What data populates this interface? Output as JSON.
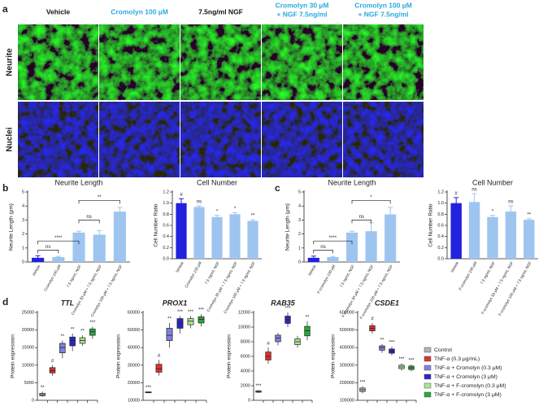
{
  "panel_labels": [
    "a",
    "b",
    "c",
    "d"
  ],
  "panel_a": {
    "columns": [
      {
        "lines": [
          "Vehicle"
        ],
        "color": "#111111"
      },
      {
        "lines": [
          "Cromolyn 100 µM"
        ],
        "color": "#29a9e0"
      },
      {
        "lines": [
          "7.5ng/ml NGF"
        ],
        "color": "#111111"
      },
      {
        "lines": [
          "Cromolyn 30 µM",
          "+ NGF 7.5ng/ml"
        ],
        "color": "#29a9e0"
      },
      {
        "lines": [
          "Cromolyn 100 µM",
          "+ NGF 7.5ng/ml"
        ],
        "color": "#29a9e0"
      }
    ],
    "rows": [
      "Neurite",
      "Nuclei"
    ]
  },
  "legend": [
    {
      "name": "Control",
      "color": "#b3b3b3"
    },
    {
      "name": "TNF-α (0.3 μg/mL)",
      "color": "#e0302a"
    },
    {
      "name": "TNF-α + Cromolyn (0.3 μM)",
      "color": "#8080e0"
    },
    {
      "name": "TNF-α + Cromolyn (3 μM)",
      "color": "#2828c0"
    },
    {
      "name": "TNF-α + F-cromolyn (0.3 μM)",
      "color": "#a8e890"
    },
    {
      "name": "TNF-α + F-cromolyn (3 μM)",
      "color": "#2aa83a"
    }
  ],
  "chart_data": [
    {
      "type": "bar",
      "title": "Neurite Length",
      "ylabel": "Neurite Length (μm)",
      "categories": [
        "Vehicle",
        "Cromolyn 100 μM",
        "7.5 ng/mL NGF",
        "Cromolyn 30 μM + 7.5 ng/mL NGF",
        "Cromolyn 100 μM + 7.5 ng/mL NGF"
      ],
      "values": [
        0.3,
        0.35,
        2.1,
        1.95,
        3.6
      ],
      "errors": [
        0.15,
        0.05,
        0.1,
        0.3,
        0.3
      ],
      "colors": [
        "#2222dd",
        "#9ec5f0",
        "#9ec5f0",
        "#9ec5f0",
        "#9ec5f0"
      ],
      "brackets": [
        "ns",
        "****",
        "ns",
        "**"
      ],
      "ylim": [
        0,
        5
      ],
      "yticks": [
        0,
        1,
        2,
        3,
        4,
        5
      ]
    },
    {
      "type": "bar",
      "title": "Cell Number",
      "ylabel": "Cell Number Ratio",
      "categories": [
        "Vehicle",
        "Cromolyn 100 μM",
        "7.5 ng/mL NGF",
        "Cromolyn 30 μM + 7.5 ng/mL NGF",
        "Cromolyn 100 μM + 7.5 ng/mL NGF"
      ],
      "values": [
        1.0,
        0.93,
        0.75,
        0.8,
        0.68
      ],
      "errors": [
        0.08,
        0.02,
        0.03,
        0.03,
        0.02
      ],
      "colors": [
        "#2222dd",
        "#9ec5f0",
        "#9ec5f0",
        "#9ec5f0",
        "#9ec5f0"
      ],
      "significance": [
        "#",
        "ns",
        "*",
        "*",
        "**"
      ],
      "ylim": [
        0,
        1.2
      ],
      "yticks": [
        {
          "value": 0,
          "label": "0.0"
        },
        {
          "value": 0.2,
          "label": "0.2"
        },
        {
          "value": 0.4,
          "label": "0.4"
        },
        {
          "value": 0.6,
          "label": "0.6"
        },
        {
          "value": 0.8,
          "label": "0.8"
        },
        {
          "value": 1,
          "label": "1.0"
        },
        {
          "value": 1.2,
          "label": "1.2"
        }
      ]
    },
    {
      "type": "bar",
      "title": "Neurite Length",
      "ylabel": "Neurite Length (μm)",
      "categories": [
        "Vehicle",
        "F-cromolyn 100 μM",
        "7.5 ng/mL NGF",
        "F-cromolyn 30 μM + 7.5 ng/mL NGF",
        "F-cromolyn 100 μM + 7.5 ng/mL NGF"
      ],
      "values": [
        0.3,
        0.35,
        2.1,
        2.2,
        3.4
      ],
      "errors": [
        0.12,
        0.05,
        0.1,
        0.6,
        0.5
      ],
      "colors": [
        "#2222dd",
        "#9ec5f0",
        "#9ec5f0",
        "#9ec5f0",
        "#9ec5f0"
      ],
      "brackets": [
        "ns",
        "****",
        "ns",
        "*"
      ],
      "ylim": [
        0,
        5
      ],
      "yticks": [
        0,
        1,
        2,
        3,
        4,
        5
      ]
    },
    {
      "type": "bar",
      "title": "Cell Number",
      "ylabel": "Cell Number Ratio",
      "categories": [
        "Vehicle",
        "F-cromolyn 100 μM",
        "7.5 ng/mL NGF",
        "F-cromolyn 30 μM + 7.5 ng/mL NGF",
        "F-cromolyn 100 μM + 7.5 ng/mL NGF"
      ],
      "values": [
        1.0,
        1.02,
        0.75,
        0.85,
        0.7
      ],
      "errors": [
        0.1,
        0.15,
        0.03,
        0.1,
        0.02
      ],
      "colors": [
        "#2222dd",
        "#9ec5f0",
        "#9ec5f0",
        "#9ec5f0",
        "#9ec5f0"
      ],
      "significance": [
        "#",
        "ns",
        "*",
        "ns",
        "**"
      ],
      "ylim": [
        0,
        1.2
      ],
      "yticks": [
        {
          "value": 0,
          "label": "0.0"
        },
        {
          "value": 0.2,
          "label": "0.2"
        },
        {
          "value": 0.4,
          "label": "0.4"
        },
        {
          "value": 0.6,
          "label": "0.6"
        },
        {
          "value": 0.8,
          "label": "0.8"
        },
        {
          "value": 1,
          "label": "1.0"
        },
        {
          "value": 1.2,
          "label": "1.2"
        }
      ]
    },
    {
      "type": "box",
      "title": "TTL",
      "ylabel": "Protein expression",
      "values": [
        [
          1000,
          1300,
          1600,
          2000,
          2500
        ],
        [
          7000,
          7800,
          8500,
          9300,
          10000
        ],
        [
          12000,
          13500,
          15000,
          16200,
          17000
        ],
        [
          14000,
          15500,
          17000,
          18000,
          19000
        ],
        [
          15500,
          16200,
          17000,
          17800,
          18500
        ],
        [
          17500,
          18500,
          19500,
          20300,
          21000
        ]
      ],
      "significance": [
        "**",
        "#",
        "**",
        "**",
        "**",
        "***"
      ],
      "ylim": [
        0,
        25000
      ],
      "yticks": [
        0,
        5000,
        10000,
        15000,
        20000,
        25000
      ]
    },
    {
      "type": "box",
      "title": "PROX1",
      "ylabel": "Protein expression",
      "values": [
        [
          14000,
          14300,
          14500,
          14800,
          15000
        ],
        [
          24000,
          26000,
          28000,
          30500,
          33000
        ],
        [
          40000,
          44000,
          47000,
          51000,
          54000
        ],
        [
          48000,
          51000,
          54000,
          56500,
          58000
        ],
        [
          51000,
          53000,
          55000,
          56500,
          58000
        ],
        [
          52000,
          54000,
          56000,
          57500,
          59000
        ]
      ],
      "significance": [
        "***",
        "#",
        "**",
        "***",
        "***",
        "***"
      ],
      "ylim": [
        10000,
        60000
      ],
      "yticks": [
        10000,
        20000,
        30000,
        40000,
        50000,
        60000
      ]
    },
    {
      "type": "box",
      "title": "RAB35",
      "ylabel": "Protein expression",
      "values": [
        [
          1000,
          1100,
          1200,
          1300,
          1400
        ],
        [
          5000,
          5500,
          6000,
          6600,
          7200
        ],
        [
          7500,
          8000,
          8500,
          8900,
          9200
        ],
        [
          10000,
          10500,
          11000,
          11500,
          12000
        ],
        [
          7200,
          7600,
          8000,
          8400,
          8800
        ],
        [
          8200,
          8800,
          9500,
          10100,
          10800
        ]
      ],
      "significance": [
        "***",
        "#",
        null,
        "***",
        null,
        "**"
      ],
      "ylim": [
        0,
        12000
      ],
      "yticks": [
        0,
        2000,
        4000,
        6000,
        8000,
        10000,
        12000
      ]
    },
    {
      "type": "box",
      "title": "CSDE1",
      "ylabel": "Protein expression",
      "values": [
        [
          140000,
          150000,
          160000,
          170000,
          180000
        ],
        [
          480000,
          495000,
          510000,
          525000,
          540000
        ],
        [
          370000,
          385000,
          400000,
          410000,
          420000
        ],
        [
          355000,
          368000,
          380000,
          392000,
          405000
        ],
        [
          270000,
          280000,
          290000,
          300000,
          310000
        ],
        [
          265000,
          275000,
          285000,
          295000,
          305000
        ]
      ],
      "significance": [
        "***",
        "#",
        "**",
        "***",
        "***",
        "***"
      ],
      "ylim": [
        100000,
        600000
      ],
      "yticks": [
        100000,
        200000,
        300000,
        400000,
        500000,
        600000
      ]
    }
  ]
}
